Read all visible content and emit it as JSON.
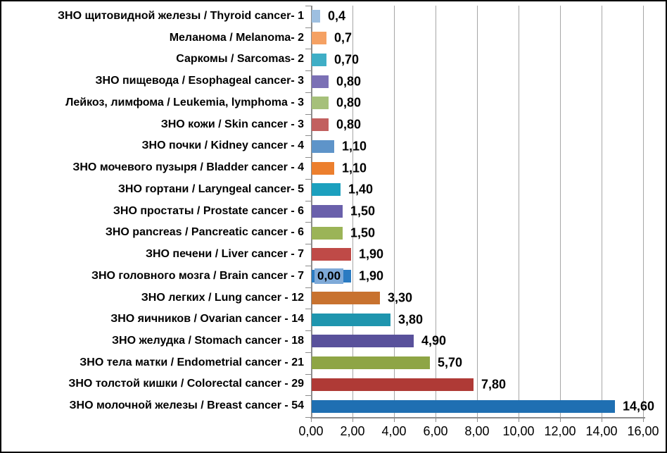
{
  "chart_data": {
    "type": "bar",
    "orientation": "horizontal",
    "title": "",
    "xlabel": "",
    "ylabel": "",
    "xlim": [
      0,
      16
    ],
    "x_ticks": [
      "0,00",
      "2,00",
      "4,00",
      "6,00",
      "8,00",
      "10,00",
      "12,00",
      "14,00",
      "16,00"
    ],
    "x_tick_values": [
      0,
      2,
      4,
      6,
      8,
      10,
      12,
      14,
      16
    ],
    "grid": true,
    "legend_position": "none",
    "categories": [
      "ЗНО щитовидной железы / Thyroid cancer- 1",
      "Меланома / Melanoma- 2",
      "Саркомы / Sarcomas- 2",
      "ЗНО пищевода / Esophageal cancer- 3",
      "Лейкоз, лимфома / Leukemia, lymphoma - 3",
      "ЗНО кожи  / Skin cancer - 3",
      "ЗНО почки / Kidney cancer - 4",
      "ЗНО мочевого пузыря / Bladder cancer - 4",
      "ЗНО гортани / Laryngeal cancer- 5",
      "ЗНО простаты / Prostate cancer - 6",
      "ЗНО pancreas / Pancreatic cancer - 6",
      "ЗНО печени  / Liver cancer - 7",
      "ЗНО головного мозга / Brain cancer - 7",
      "ЗНО легких / Lung cancer - 12",
      "ЗНО  яичников / Ovarian cancer - 14",
      "ЗНО желудка / Stomach cancer - 18",
      "ЗНО тела матки / Endometrial cancer - 21",
      "ЗНО толстой кишки / Colorectal cancer - 29",
      "ЗНО молочной железы / Breast cancer - 54"
    ],
    "values": [
      0.4,
      0.7,
      0.7,
      0.8,
      0.8,
      0.8,
      1.1,
      1.1,
      1.4,
      1.5,
      1.5,
      1.9,
      1.9,
      3.3,
      3.8,
      4.9,
      5.7,
      7.8,
      14.6
    ],
    "value_labels": [
      "0,4",
      "0,7",
      "0,70",
      "0,80",
      "0,80",
      "0,80",
      "1,10",
      "1,10",
      "1,40",
      "1,50",
      "1,50",
      "1,90",
      "1,90",
      "3,30",
      "3,80",
      "4,90",
      "5,70",
      "7,80",
      "14,60"
    ],
    "bar_colors": [
      "#9ebfe0",
      "#f5a163",
      "#3faec6",
      "#7b70b5",
      "#a6c07a",
      "#c2605f",
      "#5e94c9",
      "#ec7f2e",
      "#1ca0be",
      "#6a60ab",
      "#9bb457",
      "#bf4a47",
      "#2b7bc2",
      "#c8722f",
      "#1f95ae",
      "#59519b",
      "#8ea545",
      "#af3a36",
      "#1f6fb2"
    ],
    "overlay_label": {
      "row_index": 12,
      "text": "0,00",
      "background": "#7faad8"
    },
    "colors": {
      "gridline": "#a6a6a6",
      "axis": "#8c8c8c",
      "background": "#ffffff",
      "border": "#000000",
      "text": "#000000"
    }
  }
}
